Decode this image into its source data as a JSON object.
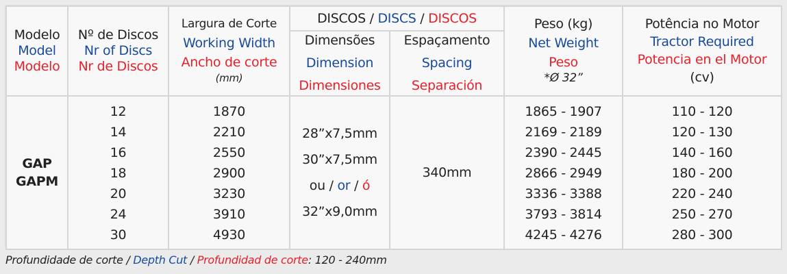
{
  "headers": {
    "model": {
      "pt": "Modelo",
      "en": "Model",
      "es": "Modelo"
    },
    "discs": {
      "pt": "Nº de Discos",
      "en": "Nr of Discs",
      "es": "Nr de Discos"
    },
    "width": {
      "pt": "Largura de Corte",
      "en": "Working Width",
      "es": "Ancho de corte",
      "unit": "(mm)"
    },
    "discos_group": {
      "pt": "DISCOS",
      "sep1": " / ",
      "en": "DISCS",
      "sep2": " / ",
      "es": "DISCOS"
    },
    "dimension": {
      "pt": "Dimensões",
      "en": "Dimension",
      "es": "Dimensiones"
    },
    "spacing": {
      "pt": "Espaçamento",
      "en": "Spacing",
      "es": "Separación"
    },
    "weight": {
      "pt": "Peso (kg)",
      "en": "Net Weight",
      "es": "Peso",
      "note": "*Ø 32”"
    },
    "power": {
      "pt": "Potência no Motor",
      "en": "Tractor Required",
      "es": "Potencia en el Motor",
      "unit": "(cv)"
    }
  },
  "models": [
    "GAP",
    "GAPM"
  ],
  "discs": [
    "12",
    "14",
    "16",
    "18",
    "20",
    "24",
    "30"
  ],
  "widths": [
    "1870",
    "2210",
    "2550",
    "2900",
    "3230",
    "3910",
    "4930"
  ],
  "dimensions": {
    "d1": "28”x7,5mm",
    "d2": "30”x7,5mm",
    "or_pt": "ou",
    "sep1": " / ",
    "or_en": "or",
    "sep2": " / ",
    "or_es": "ó",
    "d3": "32”x9,0mm"
  },
  "spacing": "340mm",
  "weights": [
    "1865 - 1907",
    "2169 - 2189",
    "2390 - 2445",
    "2866 - 2949",
    "3336 - 3388",
    "3793 - 3814",
    "4245 - 4276"
  ],
  "power": [
    "110 - 120",
    "120 - 130",
    "140 - 160",
    "180 - 200",
    "220 - 240",
    "250 - 270",
    "280 - 300"
  ],
  "footnote": {
    "pt": "Profundidade de corte",
    "sep1": " / ",
    "en": "Depth Cut",
    "sep2": " / ",
    "es": "Profundidad de corte",
    "value": ": 120 - 240mm"
  },
  "colors": {
    "blue": "#174a9a",
    "red": "#e8202a"
  }
}
